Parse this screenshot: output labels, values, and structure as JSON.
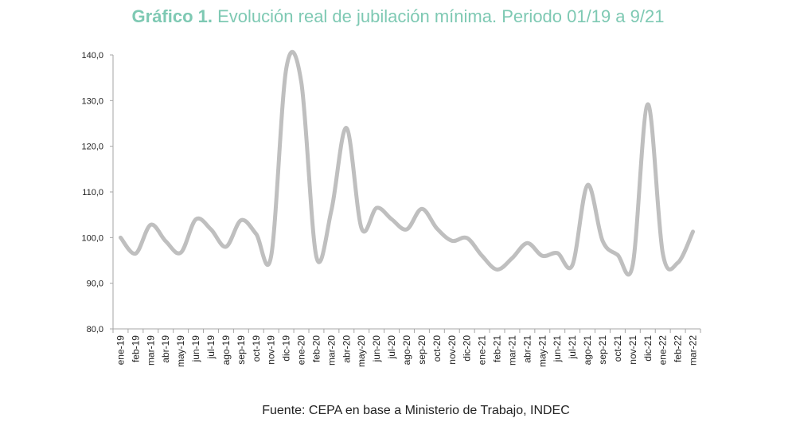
{
  "title": {
    "bold": "Gráfico 1.",
    "rest": "Evolución real de jubilación mínima. Periodo 01/19 a 9/21"
  },
  "source": "Fuente: CEPA en base a Ministerio de Trabajo, INDEC",
  "colors": {
    "title": "#7ec9b3",
    "line": "#bfbfbf",
    "axis": "#a6a6a6"
  },
  "chart_data": {
    "type": "line",
    "title": "Gráfico 1. Evolución real de jubilación mínima. Periodo 01/19 a 9/21",
    "xlabel": "",
    "ylabel": "",
    "ylim": [
      80,
      140
    ],
    "yticks": [
      "80,0",
      "90,0",
      "100,0",
      "110,0",
      "120,0",
      "130,0",
      "140,0"
    ],
    "grid": false,
    "legend": "none",
    "categories": [
      "ene-19",
      "feb-19",
      "mar-19",
      "abr-19",
      "may-19",
      "jun-19",
      "jul-19",
      "ago-19",
      "sep-19",
      "oct-19",
      "nov-19",
      "dic-19",
      "ene-20",
      "feb-20",
      "mar-20",
      "abr-20",
      "may-20",
      "jun-20",
      "jul-20",
      "ago-20",
      "sep-20",
      "oct-20",
      "nov-20",
      "dic-20",
      "ene-21",
      "feb-21",
      "mar-21",
      "abr-21",
      "may-21",
      "jun-21",
      "jul-21",
      "ago-21",
      "sep-21",
      "oct-21",
      "nov-21",
      "dic-21",
      "ene-22",
      "feb-22",
      "mar-22"
    ],
    "series": [
      {
        "values": [
          100.0,
          96.5,
          102.8,
          99.2,
          96.7,
          104.0,
          101.8,
          98.0,
          103.8,
          100.8,
          96.0,
          137.0,
          134.0,
          95.8,
          106.0,
          124.0,
          102.0,
          106.5,
          104.0,
          101.8,
          106.3,
          102.0,
          99.3,
          99.9,
          96.0,
          93.0,
          95.5,
          98.8,
          96.0,
          96.6,
          94.0,
          111.5,
          99.3,
          96.2,
          94.0,
          129.2,
          96.5,
          94.5,
          101.3
        ]
      }
    ]
  }
}
